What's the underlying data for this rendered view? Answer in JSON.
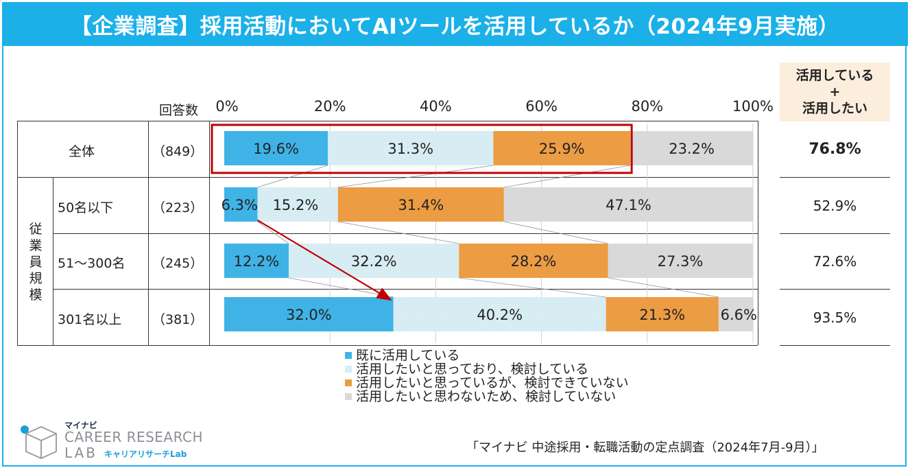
{
  "page": {
    "title": "【企業調査】採用活動においてAIツールを活用しているか（2024年9月実施）",
    "source": "「マイナビ 中途採用・転職活動の定点調査（2024年7月-9月）」",
    "logo": {
      "small": "マイナビ",
      "main": "CAREER RESEARCH",
      "lab": "LAB",
      "kana": "キャリアリサーチLab"
    }
  },
  "table": {
    "responses_header": "回答数",
    "sum_header": [
      "活用している",
      "+",
      "活用したい"
    ],
    "group_label": [
      "従",
      "業",
      "員",
      "規",
      "模"
    ]
  },
  "colors": {
    "using": "#3fb3e6",
    "considering": "#d6eef5",
    "want_not_considering": "#ec9c43",
    "not_want": "#d9d9d9",
    "highlight_box": "#c00000",
    "arrow": "#c00000",
    "title_bg": "#1bb0e8",
    "sum_header_bg": "#fbeedd"
  },
  "chart_data": {
    "type": "bar",
    "orientation": "horizontal",
    "stacked": true,
    "xlim": [
      0,
      100
    ],
    "x_ticks": [
      "0%",
      "20%",
      "40%",
      "60%",
      "80%",
      "100%"
    ],
    "categories": [
      "全体",
      "50名以下",
      "51～300名",
      "301名以上"
    ],
    "responses": [
      "（849）",
      "（223）",
      "（245）",
      "（381）"
    ],
    "series": [
      {
        "name": "既に活用している",
        "values": [
          19.6,
          6.3,
          12.2,
          32.0
        ],
        "labels": [
          "19.6%",
          "6.3%",
          "12.2%",
          "32.0%"
        ]
      },
      {
        "name": "活用したいと思っており、検討している",
        "values": [
          31.3,
          15.2,
          32.2,
          40.2
        ],
        "labels": [
          "31.3%",
          "15.2%",
          "32.2%",
          "40.2%"
        ]
      },
      {
        "name": "活用したいと思っているが、検討できていない",
        "values": [
          25.9,
          31.4,
          28.2,
          21.3
        ],
        "labels": [
          "25.9%",
          "31.4%",
          "28.2%",
          "21.3%"
        ]
      },
      {
        "name": "活用したいと思わないため、検討していない",
        "values": [
          23.2,
          47.1,
          27.3,
          6.6
        ],
        "labels": [
          "23.2%",
          "47.1%",
          "27.3%",
          "6.6%"
        ]
      }
    ],
    "sum": {
      "values": [
        76.8,
        52.9,
        72.6,
        93.5
      ],
      "labels": [
        "76.8%",
        "52.9%",
        "72.6%",
        "93.5%"
      ]
    },
    "legend_position": "bottom",
    "grid": true
  }
}
